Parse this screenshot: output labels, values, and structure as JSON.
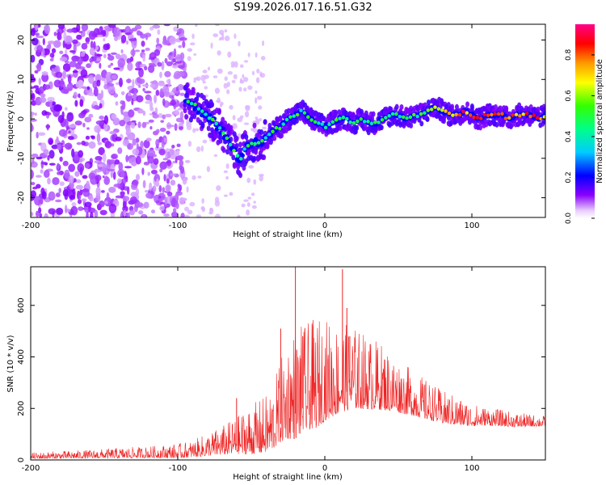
{
  "title": "S199.2026.017.16.51.G32",
  "chart_data": [
    {
      "type": "heatmap",
      "xlabel": "Height of straight line (km)",
      "ylabel": "Frequency (Hz)",
      "xlim": [
        -200,
        150
      ],
      "ylim": [
        -25,
        24
      ],
      "xticks": [
        -200,
        -100,
        0,
        100
      ],
      "xtick_labels": [
        "-200",
        "-100",
        "0",
        "100"
      ],
      "yticks": [
        20,
        10,
        0,
        -10,
        -20
      ],
      "ytick_labels": [
        "20",
        "10",
        "0",
        "-10",
        "-20"
      ],
      "noise_region_x": [
        -200,
        -95
      ],
      "ridge": {
        "x": [
          -95,
          -90,
          -85,
          -80,
          -75,
          -70,
          -65,
          -60,
          -58,
          -55,
          -50,
          -45,
          -40,
          -35,
          -30,
          -25,
          -20,
          -15,
          -10,
          -5,
          0,
          5,
          10,
          15,
          20,
          25,
          30,
          35,
          40,
          45,
          50,
          55,
          60,
          65,
          70,
          75,
          80,
          85,
          90,
          95,
          100,
          105,
          110,
          115,
          120,
          125,
          130,
          135,
          140,
          145,
          150
        ],
        "y": [
          5,
          4,
          2,
          1,
          -1,
          -3,
          -6,
          -9,
          -11,
          -8,
          -6,
          -6,
          -5,
          -3,
          -2,
          0,
          1,
          2,
          0,
          -1,
          -2,
          -1,
          0,
          0,
          -1,
          0,
          -1,
          -1,
          0,
          1,
          1,
          0,
          1,
          1,
          2,
          3,
          2,
          1,
          1,
          2,
          1,
          0,
          1,
          1,
          1,
          0,
          1,
          1,
          1,
          0,
          1
        ]
      },
      "colorbar": {
        "label": "Normalized spectral amplitude",
        "range": [
          0,
          0.95
        ],
        "ticks": [
          0.0,
          0.2,
          0.4,
          0.6,
          0.8
        ],
        "tick_labels": [
          "0.0",
          "0.2",
          "0.4",
          "0.6",
          "0.8"
        ]
      }
    },
    {
      "type": "line",
      "xlabel": "Height of straight line (km)",
      "ylabel": "SNR (10 * v/v)",
      "xlim": [
        -200,
        150
      ],
      "ylim": [
        0,
        750
      ],
      "xticks": [
        -200,
        -100,
        0,
        100
      ],
      "xtick_labels": [
        "-200",
        "-100",
        "0",
        "100"
      ],
      "yticks": [
        0,
        200,
        400,
        600
      ],
      "ytick_labels": [
        "0",
        "200",
        "400",
        "600"
      ],
      "color": "#ee2222",
      "envelope": {
        "x": [
          -200,
          -180,
          -160,
          -140,
          -120,
          -100,
          -90,
          -80,
          -70,
          -60,
          -55,
          -50,
          -45,
          -40,
          -35,
          -30,
          -25,
          -20,
          -15,
          -10,
          -5,
          0,
          10,
          20,
          30,
          40,
          50,
          60,
          70,
          80,
          90,
          100,
          110,
          120,
          130,
          140,
          150
        ],
        "base": [
          10,
          12,
          14,
          16,
          18,
          20,
          25,
          35,
          45,
          55,
          60,
          65,
          70,
          80,
          100,
          140,
          170,
          180,
          200,
          210,
          220,
          240,
          260,
          270,
          260,
          250,
          230,
          210,
          190,
          170,
          160,
          150,
          150,
          145,
          140,
          140,
          140
        ],
        "amp": [
          15,
          18,
          20,
          25,
          28,
          35,
          40,
          55,
          70,
          90,
          110,
          120,
          130,
          140,
          160,
          200,
          250,
          280,
          260,
          260,
          270,
          250,
          220,
          200,
          180,
          160,
          130,
          110,
          95,
          80,
          70,
          55,
          45,
          40,
          35,
          30,
          25
        ]
      },
      "spikes": [
        {
          "x": -60,
          "y": 240
        },
        {
          "x": -30,
          "y": 510
        },
        {
          "x": -20,
          "y": 750
        },
        {
          "x": -15,
          "y": 480
        },
        {
          "x": -8,
          "y": 520
        },
        {
          "x": 12,
          "y": 740
        },
        {
          "x": 15,
          "y": 590
        },
        {
          "x": 17,
          "y": 480
        }
      ]
    }
  ]
}
